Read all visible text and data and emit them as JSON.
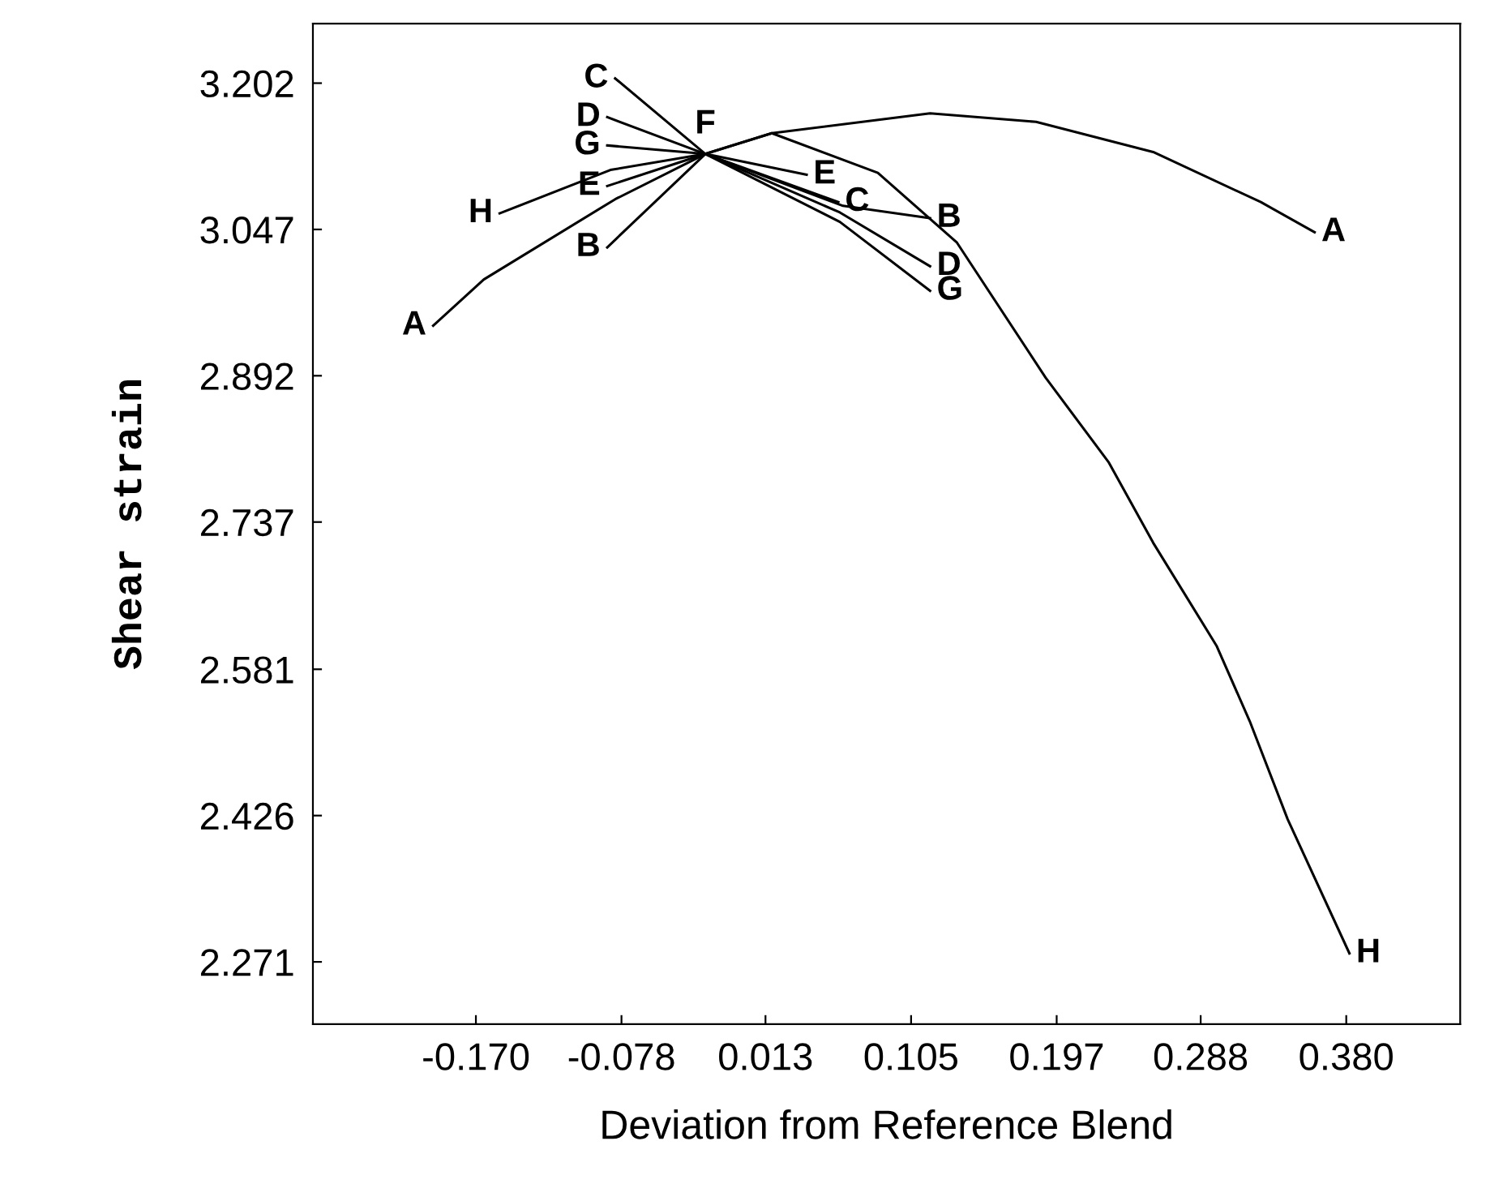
{
  "chart_data": {
    "type": "line",
    "xlabel": "Deviation from Reference Blend",
    "ylabel": "Shear strain",
    "xlim": [
      -0.273,
      0.452
    ],
    "ylim": [
      2.205,
      3.265
    ],
    "xticks": [
      {
        "value": -0.17,
        "label": "-0.170"
      },
      -0.078,
      0.013,
      0.105,
      0.197,
      0.288,
      {
        "value": 0.38,
        "label": "0.380"
      }
    ],
    "yticks": [
      2.271,
      2.426,
      2.581,
      2.737,
      2.892,
      3.047,
      3.202
    ],
    "grid": false,
    "legend": false,
    "marker": "none",
    "line_style": "solid",
    "annotations": [
      {
        "text": "F",
        "x": -0.025,
        "y": 3.127
      }
    ],
    "series": [
      {
        "name": "A",
        "color": "#000000",
        "x": [
          -0.197,
          -0.165,
          -0.082,
          -0.025,
          0.017,
          0.117,
          0.184,
          0.258,
          0.326,
          0.36
        ],
        "values": [
          2.945,
          2.994,
          3.079,
          3.127,
          3.149,
          3.17,
          3.161,
          3.129,
          3.076,
          3.044
        ]
      },
      {
        "name": "B",
        "color": "#000000",
        "x": [
          -0.087,
          -0.025,
          0.062,
          0.117
        ],
        "values": [
          3.028,
          3.127,
          3.072,
          3.059
        ]
      },
      {
        "name": "C",
        "color": "#000000",
        "x": [
          -0.082,
          -0.025,
          0.059
        ],
        "values": [
          3.207,
          3.127,
          3.076
        ]
      },
      {
        "name": "D",
        "color": "#000000",
        "x": [
          -0.087,
          -0.025,
          0.06,
          0.117
        ],
        "values": [
          3.166,
          3.127,
          3.065,
          3.008
        ]
      },
      {
        "name": "E",
        "color": "#000000",
        "x": [
          -0.087,
          -0.025,
          0.039
        ],
        "values": [
          3.093,
          3.127,
          3.105
        ]
      },
      {
        "name": "G",
        "color": "#000000",
        "x": [
          -0.087,
          -0.025,
          0.06,
          0.117
        ],
        "values": [
          3.136,
          3.127,
          3.055,
          2.982
        ]
      },
      {
        "name": "H",
        "color": "#000000",
        "x": [
          -0.155,
          -0.085,
          -0.025,
          0.017,
          0.084,
          0.134,
          0.19,
          0.23,
          0.258,
          0.298,
          0.319,
          0.343,
          0.382
        ],
        "values": [
          3.064,
          3.11,
          3.127,
          3.149,
          3.107,
          3.033,
          2.89,
          2.8,
          2.715,
          2.606,
          2.526,
          2.422,
          2.28
        ]
      }
    ]
  }
}
